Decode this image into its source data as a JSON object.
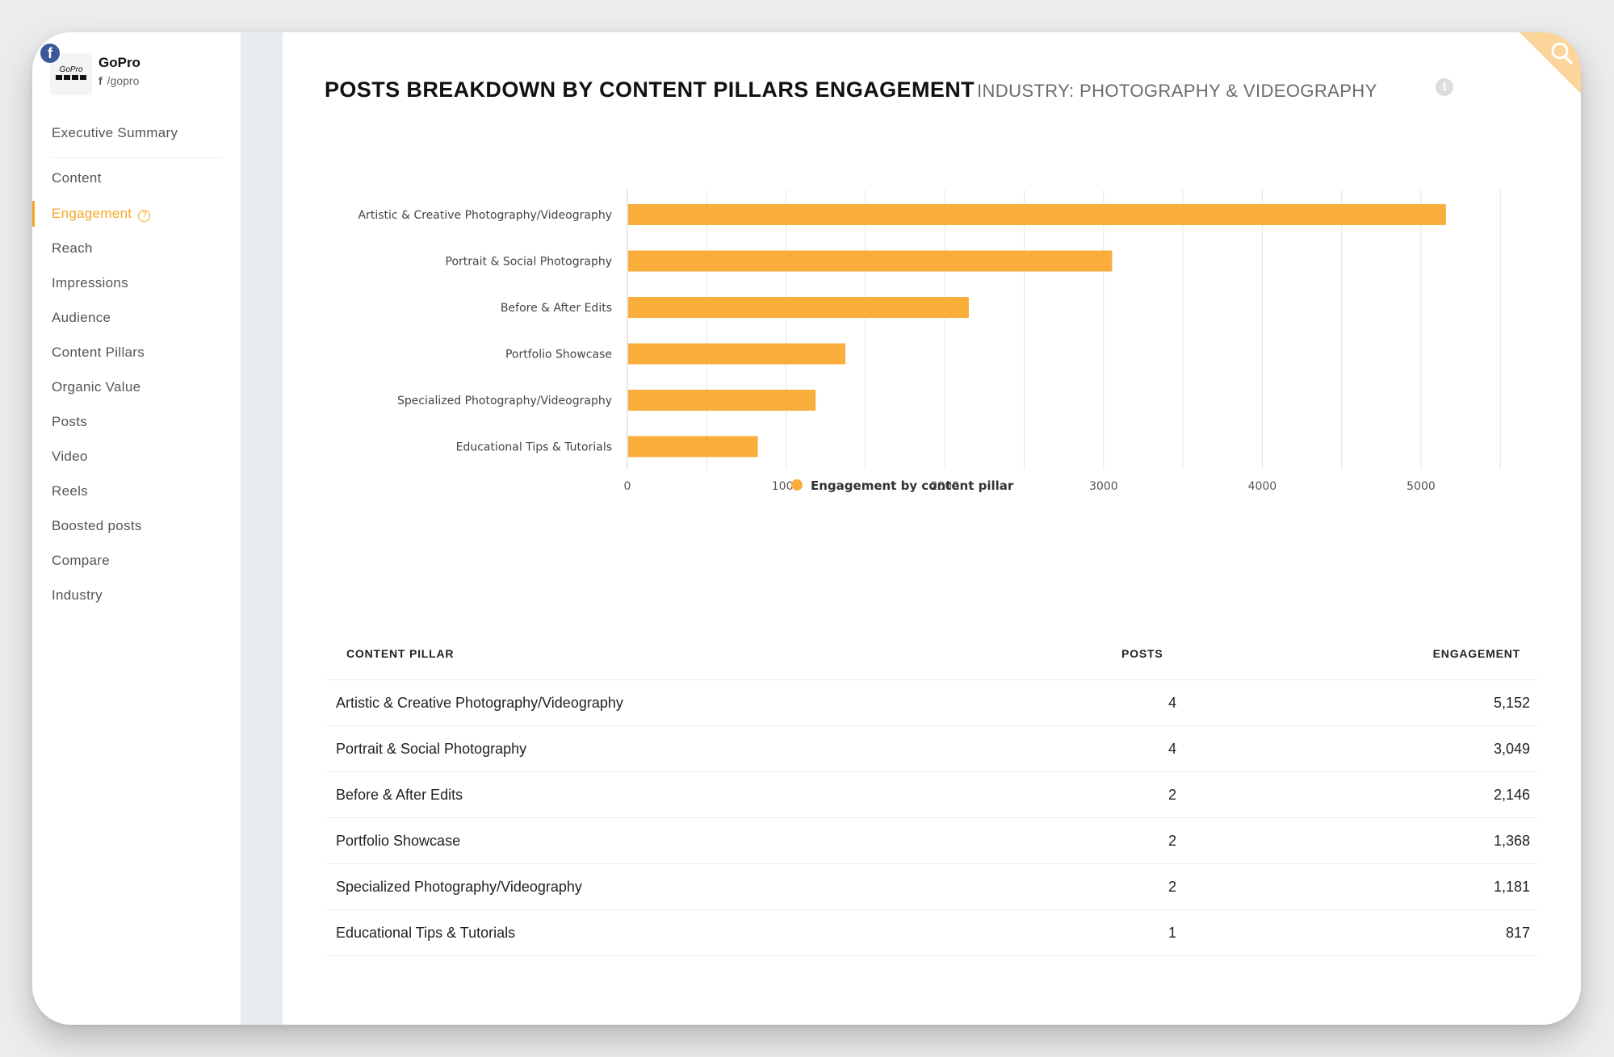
{
  "profile": {
    "name": "GoPro",
    "handle": "/gopro",
    "platform_badge": "f",
    "logo_text": "GoPro"
  },
  "sidebar": {
    "items": [
      {
        "label": "Executive Summary"
      },
      {
        "label": "Content"
      },
      {
        "label": "Engagement",
        "active": true
      },
      {
        "label": "Reach"
      },
      {
        "label": "Impressions"
      },
      {
        "label": "Audience"
      },
      {
        "label": "Content Pillars"
      },
      {
        "label": "Organic Value"
      },
      {
        "label": "Posts"
      },
      {
        "label": "Video"
      },
      {
        "label": "Reels"
      },
      {
        "label": "Boosted posts"
      },
      {
        "label": "Compare"
      },
      {
        "label": "Industry"
      }
    ]
  },
  "header": {
    "title": "POSTS BREAKDOWN BY CONTENT PILLARS ENGAGEMENT",
    "subtitle": "INDUSTRY: PHOTOGRAPHY & VIDEOGRAPHY"
  },
  "colors": {
    "accent": "#f5a623",
    "bar": "#f9ae3b",
    "facebook": "#3b5998"
  },
  "chart_data": {
    "type": "bar",
    "orientation": "horizontal",
    "categories": [
      "Artistic & Creative Photography/Videography",
      "Portrait & Social Photography",
      "Before & After Edits",
      "Portfolio Showcase",
      "Specialized Photography/Videography",
      "Educational Tips & Tutorials"
    ],
    "series": [
      {
        "name": "Engagement by content pillar",
        "values": [
          5152,
          3049,
          2146,
          1368,
          1181,
          817
        ]
      }
    ],
    "xticks": [
      "0",
      "1000",
      "2000",
      "3000",
      "4000",
      "5000"
    ],
    "xlim": [
      0,
      5500
    ],
    "grid": true,
    "legend": "bottom-center"
  },
  "table": {
    "columns": [
      "CONTENT PILLAR",
      "POSTS",
      "ENGAGEMENT"
    ],
    "rows": [
      {
        "pillar": "Artistic & Creative Photography/Videography",
        "posts": "4",
        "engagement": "5,152"
      },
      {
        "pillar": "Portrait & Social Photography",
        "posts": "4",
        "engagement": "3,049"
      },
      {
        "pillar": "Before & After Edits",
        "posts": "2",
        "engagement": "2,146"
      },
      {
        "pillar": "Portfolio Showcase",
        "posts": "2",
        "engagement": "1,368"
      },
      {
        "pillar": "Specialized Photography/Videography",
        "posts": "2",
        "engagement": "1,181"
      },
      {
        "pillar": "Educational Tips & Tutorials",
        "posts": "1",
        "engagement": "817"
      }
    ]
  },
  "icons": {
    "platform": "facebook-icon",
    "help": "help-circle-icon",
    "info": "info-icon",
    "search": "search-icon"
  }
}
